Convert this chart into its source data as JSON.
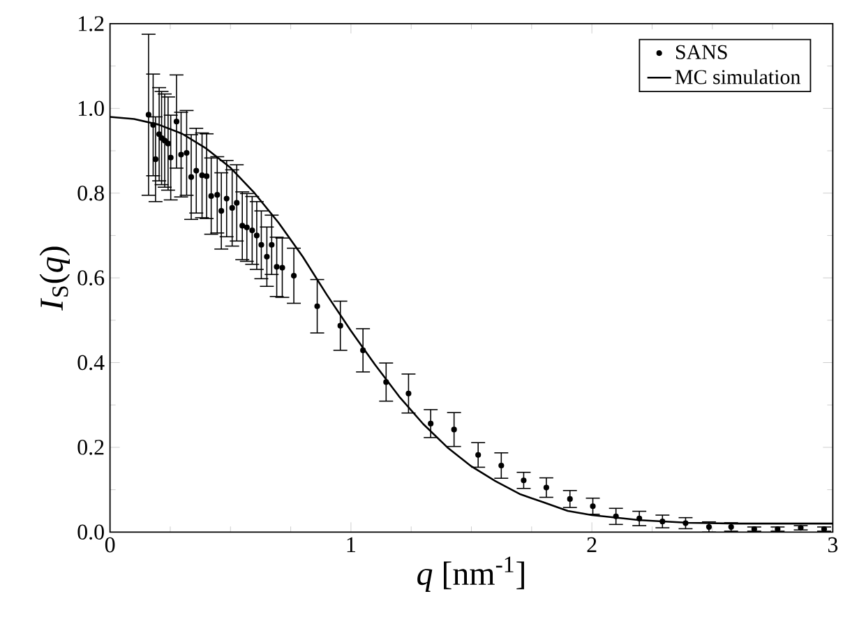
{
  "chart_data": {
    "type": "scatter",
    "xlabel": "*q* [nm$^{-1}$]",
    "ylabel": "*I*$_{S}$(*q*)",
    "xlim": [
      0,
      3
    ],
    "ylim": [
      0,
      1.2
    ],
    "xticks": [
      0,
      1,
      2,
      3
    ],
    "yticks": [
      {
        "value": 0,
        "label": "0.0"
      },
      {
        "value": 0.2,
        "label": "0.2"
      },
      {
        "value": 0.4,
        "label": "0.4"
      },
      {
        "value": 0.6,
        "label": "0.6"
      },
      {
        "value": 0.8,
        "label": "0.8"
      },
      {
        "value": 1.0,
        "label": "1.0"
      },
      {
        "value": 1.2,
        "label": "1.2"
      }
    ],
    "legend": "top right",
    "grid": false,
    "series": [
      {
        "name": "SANS",
        "marker": "circle",
        "color": "#000000",
        "x": [
          0.16,
          0.179,
          0.189,
          0.204,
          0.214,
          0.227,
          0.241,
          0.252,
          0.276,
          0.295,
          0.318,
          0.337,
          0.358,
          0.382,
          0.401,
          0.42,
          0.445,
          0.462,
          0.484,
          0.507,
          0.526,
          0.549,
          0.568,
          0.59,
          0.609,
          0.628,
          0.651,
          0.671,
          0.692,
          0.715,
          0.763,
          0.86,
          0.956,
          1.05,
          1.146,
          1.239,
          1.331,
          1.428,
          1.528,
          1.624,
          1.717,
          1.811,
          1.909,
          2.004,
          2.1,
          2.197,
          2.293,
          2.389,
          2.486,
          2.578,
          2.674,
          2.771,
          2.867,
          2.964
        ],
        "values": [
          0.985,
          0.961,
          0.88,
          0.939,
          0.93,
          0.924,
          0.917,
          0.884,
          0.969,
          0.891,
          0.895,
          0.838,
          0.853,
          0.842,
          0.84,
          0.793,
          0.796,
          0.758,
          0.787,
          0.765,
          0.777,
          0.723,
          0.719,
          0.712,
          0.7,
          0.678,
          0.65,
          0.678,
          0.626,
          0.624,
          0.605,
          0.533,
          0.487,
          0.429,
          0.354,
          0.327,
          0.256,
          0.242,
          0.182,
          0.157,
          0.122,
          0.105,
          0.078,
          0.061,
          0.037,
          0.032,
          0.025,
          0.021,
          0.012,
          0.012,
          0.007,
          0.007,
          0.01,
          0.007
        ],
        "errors": [
          0.19,
          0.12,
          0.1,
          0.11,
          0.11,
          0.11,
          0.11,
          0.1,
          0.11,
          0.1,
          0.1,
          0.1,
          0.1,
          0.1,
          0.1,
          0.09,
          0.09,
          0.09,
          0.09,
          0.09,
          0.09,
          0.08,
          0.08,
          0.08,
          0.08,
          0.08,
          0.07,
          0.07,
          0.07,
          0.07,
          0.065,
          0.063,
          0.058,
          0.051,
          0.045,
          0.046,
          0.033,
          0.04,
          0.029,
          0.03,
          0.019,
          0.023,
          0.02,
          0.019,
          0.019,
          0.017,
          0.015,
          0.013,
          0.012,
          0.01,
          0.005,
          0.005,
          0.005,
          0.005
        ]
      },
      {
        "name": "MC simulation",
        "type": "line",
        "marker": "none",
        "line_style": "solid",
        "color": "#000000",
        "x": [
          0,
          0.1,
          0.2,
          0.3,
          0.4,
          0.5,
          0.6,
          0.7,
          0.8,
          0.9,
          1.0,
          1.1,
          1.2,
          1.3,
          1.4,
          1.5,
          1.6,
          1.7,
          1.8,
          1.9,
          2.0,
          2.2,
          2.4,
          2.6,
          3.0
        ],
        "values": [
          0.98,
          0.975,
          0.962,
          0.94,
          0.905,
          0.86,
          0.8,
          0.73,
          0.65,
          0.56,
          0.475,
          0.395,
          0.32,
          0.255,
          0.2,
          0.155,
          0.12,
          0.09,
          0.07,
          0.05,
          0.04,
          0.028,
          0.022,
          0.02,
          0.02
        ]
      }
    ]
  }
}
